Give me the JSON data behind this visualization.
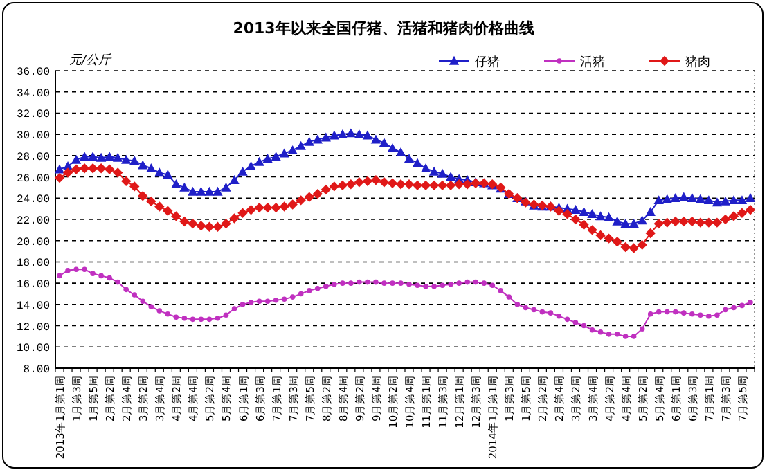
{
  "chart_data": {
    "type": "line",
    "title": "2013年以来全国仔猪、活猪和猪肉价格曲线",
    "ylabel": "元/公斤",
    "categories": [
      "2013年1月第1周",
      null,
      "1月第3周",
      null,
      "1月第5周",
      null,
      "2月第2周",
      null,
      "2月第4周",
      null,
      "3月第2周",
      null,
      "3月第4周",
      null,
      "4月第2周",
      null,
      "4月第4周",
      null,
      "5月第2周",
      null,
      "5月第4周",
      null,
      "6月第1周",
      null,
      "6月第3周",
      null,
      "7月第1周",
      null,
      "7月第3周",
      null,
      "7月第5周",
      null,
      "8月第2周",
      null,
      "8月第4周",
      null,
      "9月第2周",
      null,
      "9月第4周",
      null,
      "10月第2周",
      null,
      "10月第4周",
      null,
      "11月第1周",
      null,
      "11月第3周",
      null,
      "12月第1周",
      null,
      "12月第3周",
      null,
      "2014年1月第1周",
      null,
      "1月第3周",
      null,
      "1月第5周",
      null,
      "2月第2周",
      null,
      "2月第4周",
      null,
      "3月第2周",
      null,
      "3月第4周",
      null,
      "4月第2周",
      null,
      "4月第4周",
      null,
      "5月第2周",
      null,
      "5月第4周",
      null,
      "6月第1周",
      null,
      "6月第3周",
      null,
      "7月第1周",
      null,
      "7月第3周",
      null,
      "7月第5周",
      null
    ],
    "series": [
      {
        "name": "仔猪",
        "color": "#1f1fc8",
        "marker": "triangle",
        "values": [
          26.7,
          27.0,
          27.6,
          27.9,
          27.9,
          27.8,
          27.9,
          27.8,
          27.6,
          27.5,
          27.1,
          26.8,
          26.4,
          26.2,
          25.3,
          25.0,
          24.6,
          24.6,
          24.6,
          24.6,
          25.0,
          25.7,
          26.5,
          27.0,
          27.4,
          27.7,
          27.9,
          28.2,
          28.5,
          28.9,
          29.3,
          29.5,
          29.7,
          29.9,
          30.0,
          30.1,
          30.0,
          29.9,
          29.5,
          29.2,
          28.7,
          28.3,
          27.7,
          27.3,
          26.8,
          26.5,
          26.3,
          26.0,
          25.8,
          25.7,
          25.5,
          25.4,
          25.2,
          24.9,
          24.4,
          24.0,
          23.7,
          23.3,
          23.2,
          23.2,
          23.1,
          23.0,
          22.9,
          22.7,
          22.5,
          22.3,
          22.2,
          21.8,
          21.6,
          21.6,
          21.9,
          22.7,
          23.8,
          23.9,
          24.0,
          24.1,
          24.0,
          23.9,
          23.8,
          23.6,
          23.7,
          23.8,
          23.8,
          24.0
        ]
      },
      {
        "name": "活猪",
        "color": "#c030c0",
        "marker": "circle",
        "values": [
          16.7,
          17.2,
          17.3,
          17.3,
          16.9,
          16.7,
          16.5,
          16.1,
          15.4,
          14.9,
          14.3,
          13.8,
          13.4,
          13.1,
          12.8,
          12.7,
          12.6,
          12.6,
          12.6,
          12.7,
          13.0,
          13.6,
          14.0,
          14.2,
          14.3,
          14.3,
          14.4,
          14.5,
          14.7,
          15.0,
          15.3,
          15.5,
          15.7,
          15.9,
          16.0,
          16.0,
          16.1,
          16.1,
          16.1,
          16.0,
          16.0,
          16.0,
          15.9,
          15.8,
          15.7,
          15.7,
          15.8,
          15.9,
          16.0,
          16.1,
          16.1,
          16.0,
          15.8,
          15.3,
          14.7,
          14.0,
          13.7,
          13.5,
          13.3,
          13.2,
          12.9,
          12.6,
          12.3,
          12.0,
          11.6,
          11.4,
          11.2,
          11.2,
          11.0,
          11.0,
          11.7,
          13.1,
          13.3,
          13.3,
          13.3,
          13.2,
          13.1,
          13.0,
          12.9,
          13.0,
          13.5,
          13.7,
          13.9,
          14.2
        ]
      },
      {
        "name": "猪肉",
        "color": "#e01818",
        "marker": "diamond",
        "values": [
          25.9,
          26.4,
          26.7,
          26.8,
          26.8,
          26.8,
          26.7,
          26.4,
          25.6,
          25.1,
          24.2,
          23.7,
          23.2,
          22.8,
          22.3,
          21.8,
          21.6,
          21.4,
          21.3,
          21.3,
          21.6,
          22.1,
          22.6,
          22.9,
          23.1,
          23.1,
          23.1,
          23.2,
          23.4,
          23.8,
          24.1,
          24.4,
          24.8,
          25.1,
          25.2,
          25.3,
          25.5,
          25.6,
          25.7,
          25.5,
          25.4,
          25.3,
          25.3,
          25.2,
          25.2,
          25.2,
          25.2,
          25.2,
          25.3,
          25.3,
          25.4,
          25.4,
          25.3,
          25.0,
          24.4,
          24.0,
          23.6,
          23.4,
          23.3,
          23.2,
          22.8,
          22.5,
          22.0,
          21.5,
          21.0,
          20.5,
          20.2,
          19.9,
          19.4,
          19.3,
          19.6,
          20.7,
          21.6,
          21.7,
          21.8,
          21.8,
          21.8,
          21.7,
          21.7,
          21.7,
          22.0,
          22.3,
          22.6,
          22.9
        ]
      }
    ],
    "ylim": [
      8,
      36
    ],
    "yticks": [
      {
        "value": 8,
        "label": "8.00"
      },
      {
        "value": 10,
        "label": "10.00"
      },
      {
        "value": 12,
        "label": "12.00"
      },
      {
        "value": 14,
        "label": "14.00"
      },
      {
        "value": 16,
        "label": "16.00"
      },
      {
        "value": 18,
        "label": "18.00"
      },
      {
        "value": 20,
        "label": "20.00"
      },
      {
        "value": 22,
        "label": "22.00"
      },
      {
        "value": 24,
        "label": "24.00"
      },
      {
        "value": 26,
        "label": "26.00"
      },
      {
        "value": 28,
        "label": "28.00"
      },
      {
        "value": 30,
        "label": "30.00"
      },
      {
        "value": 32,
        "label": "32.00"
      },
      {
        "value": 34,
        "label": "34.00"
      },
      {
        "value": 36,
        "label": "36.00"
      }
    ],
    "grid": "y",
    "legend": "top right"
  }
}
